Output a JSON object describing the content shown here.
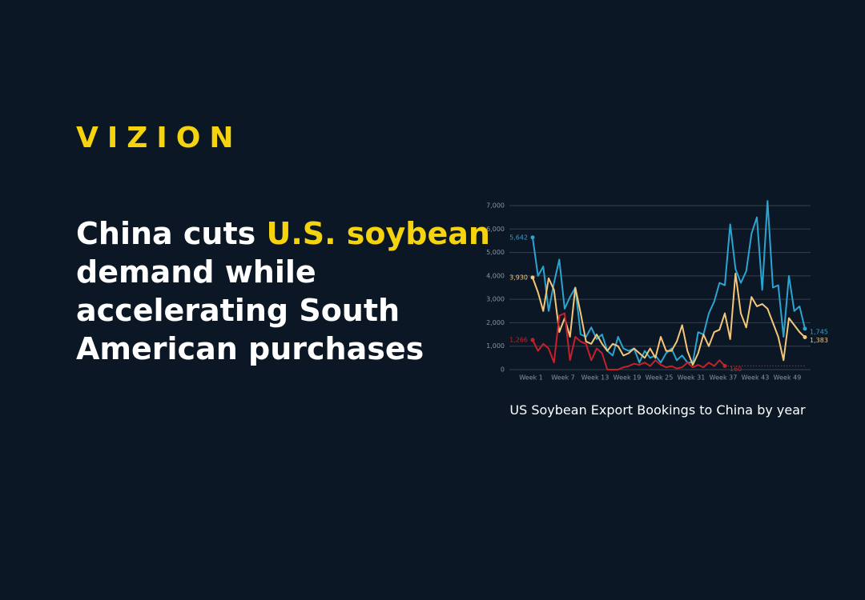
{
  "brand": "VIZION",
  "headline": [
    {
      "text": "China cuts ",
      "highlight": false
    },
    {
      "text": "U.S. soybean",
      "highlight": true
    },
    {
      "text": " demand while accelerating South American purchases",
      "highlight": false
    }
  ],
  "caption": "US Soybean Export Bookings to China by year",
  "chart_data": {
    "type": "line",
    "categories": [
      "Week 1",
      null,
      null,
      null,
      null,
      null,
      "Week 7",
      null,
      null,
      null,
      null,
      null,
      "Week 13",
      null,
      null,
      null,
      null,
      null,
      "Week 19",
      null,
      null,
      null,
      null,
      null,
      "Week 25",
      null,
      null,
      null,
      null,
      null,
      "Week 31",
      null,
      null,
      null,
      null,
      null,
      "Week 37",
      null,
      null,
      null,
      null,
      null,
      "Week 43",
      null,
      null,
      null,
      null,
      null,
      "Week 49",
      null,
      null,
      null
    ],
    "ylim": [
      0,
      7000
    ],
    "yticks": [
      0,
      {
        "value": 1000,
        "label": "1,000"
      },
      {
        "value": 2000,
        "label": "2,000"
      },
      {
        "value": 3000,
        "label": "3,000"
      },
      {
        "value": 4000,
        "label": "4,000"
      },
      {
        "value": 5000,
        "label": "5,000"
      },
      {
        "value": 6000,
        "label": "6,000"
      },
      {
        "value": 7000,
        "label": "7,000"
      }
    ],
    "grid": true,
    "series": [
      {
        "color": "#2aa4d0",
        "values": [
          5642,
          4000,
          4400,
          2500,
          3700,
          4700,
          2600,
          3100,
          3500,
          1500,
          1400,
          1800,
          1300,
          1500,
          800,
          600,
          1400,
          900,
          800,
          900,
          300,
          800,
          500,
          600,
          300,
          700,
          900,
          400,
          600,
          300,
          300,
          1600,
          1500,
          2400,
          2900,
          3700,
          3600,
          6200,
          4300,
          3700,
          4200,
          5800,
          6500,
          3400,
          7200,
          3500,
          3600,
          1400,
          4000,
          2500,
          2700,
          1745
        ],
        "value_labels": [
          "5,642",
          null,
          null,
          null,
          null,
          null,
          null,
          null,
          null,
          null,
          null,
          null,
          null,
          null,
          null,
          null,
          null,
          null,
          null,
          null,
          null,
          null,
          null,
          null,
          null,
          null,
          null,
          null,
          null,
          null,
          null,
          null,
          null,
          null,
          null,
          null,
          null,
          null,
          null,
          null,
          null,
          null,
          null,
          null,
          null,
          null,
          null,
          null,
          null,
          null,
          null,
          "1,745"
        ]
      },
      {
        "color": "#f4c67a",
        "values": [
          3930,
          3300,
          2500,
          3900,
          3400,
          1600,
          2200,
          1400,
          3500,
          2400,
          1200,
          1100,
          1500,
          1100,
          800,
          1100,
          1000,
          600,
          700,
          900,
          700,
          500,
          900,
          500,
          1400,
          800,
          800,
          1200,
          1900,
          800,
          200,
          700,
          1500,
          1000,
          1600,
          1700,
          2400,
          1300,
          4100,
          2400,
          1800,
          3100,
          2700,
          2800,
          2600,
          2000,
          1400,
          400,
          2200,
          1900,
          1600,
          1383
        ],
        "value_labels": [
          "3,930",
          null,
          null,
          null,
          null,
          null,
          null,
          null,
          null,
          null,
          null,
          null,
          null,
          null,
          null,
          null,
          null,
          null,
          null,
          null,
          null,
          null,
          null,
          null,
          null,
          null,
          null,
          null,
          null,
          null,
          null,
          null,
          null,
          null,
          null,
          null,
          null,
          null,
          null,
          null,
          null,
          null,
          null,
          null,
          null,
          null,
          null,
          null,
          null,
          null,
          null,
          "1,383"
        ]
      },
      {
        "color": "#c8202a",
        "values": [
          1266,
          800,
          1100,
          900,
          300,
          2300,
          2400,
          400,
          1400,
          1200,
          1100,
          400,
          900,
          700,
          0,
          0,
          0,
          100,
          150,
          250,
          200,
          300,
          150,
          400,
          200,
          100,
          150,
          50,
          100,
          300,
          100,
          200,
          100,
          300,
          150,
          400,
          160,
          null,
          null,
          null,
          null,
          null,
          null,
          null,
          null,
          null,
          null,
          null,
          null,
          null,
          null,
          null
        ],
        "value_labels": [
          "1,266",
          null,
          null,
          null,
          null,
          null,
          null,
          null,
          null,
          null,
          null,
          null,
          null,
          null,
          null,
          null,
          null,
          null,
          null,
          null,
          null,
          null,
          null,
          null,
          null,
          null,
          null,
          null,
          null,
          null,
          null,
          null,
          null,
          null,
          null,
          null,
          "160",
          null,
          null,
          null,
          null,
          null,
          null,
          null,
          null,
          null,
          null,
          null,
          null,
          null,
          null,
          null
        ]
      }
    ]
  }
}
